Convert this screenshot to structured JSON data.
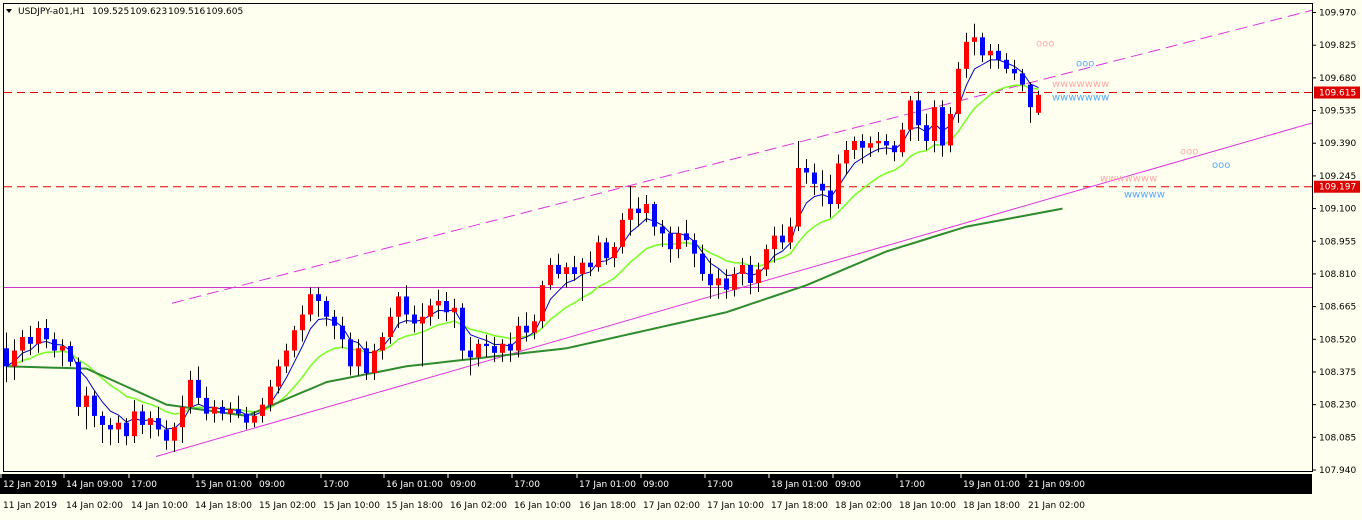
{
  "header": {
    "symbol": "USDJPY-a01,H1",
    "open": "109.525",
    "high": "109.623",
    "low": "109.516",
    "close": "109.605"
  },
  "colors": {
    "background": "#fffff0",
    "bull_candle": "#ff0000",
    "bear_candle": "#0000ff",
    "ma_fast": "#0000c8",
    "ma_mid": "#7cff2a",
    "ma_slow": "#2e8b2e",
    "channel": "#dd33dd",
    "hline_red": "#dd0000",
    "hline_magenta": "#cc33cc",
    "x_axis_bg": "#000000",
    "marker_pink": "#ffaaaa",
    "marker_blue": "#55aaff"
  },
  "chart_data": {
    "type": "candlestick",
    "instrument": "USDJPY",
    "timeframe": "H1",
    "ylim": [
      107.94,
      109.99
    ],
    "y_ticks": [
      "109.970",
      "109.825",
      "109.680",
      "109.535",
      "109.390",
      "109.245",
      "109.100",
      "108.955",
      "108.810",
      "108.665",
      "108.520",
      "108.375",
      "108.230",
      "108.085",
      "107.940"
    ],
    "x_ticks_row1": [
      "12 Jan 2019",
      "14 Jan 09:00",
      "17:00",
      "15 Jan 01:00",
      "09:00",
      "17:00",
      "16 Jan 01:00",
      "09:00",
      "17:00",
      "17 Jan 01:00",
      "09:00",
      "17:00",
      "18 Jan 01:00",
      "09:00",
      "17:00",
      "19 Jan 01:00",
      "21 Jan 09:00"
    ],
    "x_ticks_row2": [
      "11 Jan 2019",
      "14 Jan 02:00",
      "14 Jan 10:00",
      "14 Jan 18:00",
      "15 Jan 02:00",
      "15 Jan 10:00",
      "15 Jan 18:00",
      "16 Jan 02:00",
      "16 Jan 10:00",
      "16 Jan 18:00",
      "17 Jan 02:00",
      "17 Jan 10:00",
      "17 Jan 18:00",
      "18 Jan 02:00",
      "18 Jan 10:00",
      "18 Jan 18:00",
      "21 Jan 02:00"
    ],
    "price_labels": [
      {
        "value": 109.615,
        "text": "109.615"
      },
      {
        "value": 109.197,
        "text": "109.197"
      }
    ],
    "horizontal_lines": [
      {
        "value": 109.615,
        "style": "dashed",
        "color": "red"
      },
      {
        "value": 109.197,
        "style": "dashed",
        "color": "red"
      },
      {
        "value": 108.75,
        "style": "solid",
        "color": "magenta"
      }
    ],
    "channel_lines": [
      {
        "from": [
          0,
          108.68
        ],
        "to": [
          174,
          109.98
        ],
        "style": "dashed"
      },
      {
        "from": [
          0,
          108.0
        ],
        "to": [
          207,
          109.48
        ],
        "style": "solid"
      }
    ],
    "candles": [
      [
        108.48,
        108.55,
        108.33,
        108.4
      ],
      [
        108.4,
        108.52,
        108.34,
        108.47
      ],
      [
        108.47,
        108.56,
        108.42,
        108.53
      ],
      [
        108.53,
        108.58,
        108.45,
        108.5
      ],
      [
        108.5,
        108.6,
        108.46,
        108.57
      ],
      [
        108.57,
        108.61,
        108.48,
        108.52
      ],
      [
        108.52,
        108.55,
        108.44,
        108.47
      ],
      [
        108.47,
        108.52,
        108.4,
        108.49
      ],
      [
        108.49,
        108.51,
        108.4,
        108.42
      ],
      [
        108.42,
        108.44,
        108.18,
        108.22
      ],
      [
        108.22,
        108.31,
        108.12,
        108.27
      ],
      [
        108.27,
        108.29,
        108.13,
        108.18
      ],
      [
        108.18,
        108.2,
        108.06,
        108.14
      ],
      [
        108.14,
        108.17,
        108.05,
        108.12
      ],
      [
        108.12,
        108.18,
        108.06,
        108.15
      ],
      [
        108.15,
        108.17,
        108.05,
        108.09
      ],
      [
        108.09,
        108.25,
        108.06,
        108.2
      ],
      [
        108.2,
        108.23,
        108.1,
        108.14
      ],
      [
        108.14,
        108.2,
        108.08,
        108.17
      ],
      [
        108.17,
        108.22,
        108.09,
        108.12
      ],
      [
        108.12,
        108.16,
        108.03,
        108.07
      ],
      [
        108.07,
        108.15,
        108.02,
        108.13
      ],
      [
        108.13,
        108.27,
        108.06,
        108.22
      ],
      [
        108.22,
        108.38,
        108.19,
        108.34
      ],
      [
        108.34,
        108.4,
        108.23,
        108.26
      ],
      [
        108.26,
        108.31,
        108.16,
        108.19
      ],
      [
        108.19,
        108.25,
        108.15,
        108.22
      ],
      [
        108.22,
        108.25,
        108.16,
        108.19
      ],
      [
        108.19,
        108.24,
        108.15,
        108.21
      ],
      [
        108.21,
        108.27,
        108.17,
        108.19
      ],
      [
        108.19,
        108.22,
        108.12,
        108.15
      ],
      [
        108.15,
        108.2,
        108.13,
        108.18
      ],
      [
        108.18,
        108.26,
        108.15,
        108.23
      ],
      [
        108.23,
        108.34,
        108.2,
        108.31
      ],
      [
        108.31,
        108.43,
        108.28,
        108.4
      ],
      [
        108.4,
        108.5,
        108.37,
        108.47
      ],
      [
        108.47,
        108.58,
        108.44,
        108.56
      ],
      [
        108.56,
        108.67,
        108.51,
        108.63
      ],
      [
        108.63,
        108.75,
        108.6,
        108.72
      ],
      [
        108.72,
        108.75,
        108.62,
        108.69
      ],
      [
        108.69,
        108.71,
        108.58,
        108.62
      ],
      [
        108.62,
        108.65,
        108.52,
        108.58
      ],
      [
        108.58,
        108.62,
        108.48,
        108.52
      ],
      [
        108.52,
        108.55,
        108.36,
        108.4
      ],
      [
        108.4,
        108.52,
        108.36,
        108.48
      ],
      [
        108.48,
        108.51,
        108.34,
        108.37
      ],
      [
        108.37,
        108.5,
        108.34,
        108.47
      ],
      [
        108.47,
        108.55,
        108.43,
        108.53
      ],
      [
        108.53,
        108.66,
        108.5,
        108.62
      ],
      [
        108.62,
        108.73,
        108.57,
        108.71
      ],
      [
        108.71,
        108.76,
        108.59,
        108.63
      ],
      [
        108.63,
        108.67,
        108.55,
        108.59
      ],
      [
        108.59,
        108.68,
        108.4,
        108.62
      ],
      [
        108.62,
        108.7,
        108.58,
        108.67
      ],
      [
        108.67,
        108.74,
        108.61,
        108.69
      ],
      [
        108.69,
        108.73,
        108.6,
        108.64
      ],
      [
        108.64,
        108.7,
        108.57,
        108.66
      ],
      [
        108.66,
        108.68,
        108.43,
        108.47
      ],
      [
        108.47,
        108.53,
        108.36,
        108.44
      ],
      [
        108.44,
        108.52,
        108.4,
        108.5
      ],
      [
        108.5,
        108.54,
        108.44,
        108.49
      ],
      [
        108.49,
        108.53,
        108.42,
        108.46
      ],
      [
        108.46,
        108.52,
        108.42,
        108.5
      ],
      [
        108.5,
        108.55,
        108.42,
        108.47
      ],
      [
        108.47,
        108.62,
        108.44,
        108.58
      ],
      [
        108.58,
        108.64,
        108.51,
        108.55
      ],
      [
        108.55,
        108.63,
        108.52,
        108.6
      ],
      [
        108.6,
        108.78,
        108.57,
        108.76
      ],
      [
        108.76,
        108.88,
        108.74,
        108.85
      ],
      [
        108.85,
        108.9,
        108.79,
        108.81
      ],
      [
        108.81,
        108.86,
        108.75,
        108.84
      ],
      [
        108.84,
        108.89,
        108.78,
        108.81
      ],
      [
        108.81,
        108.88,
        108.69,
        108.86
      ],
      [
        108.86,
        108.91,
        108.8,
        108.84
      ],
      [
        108.84,
        108.98,
        108.82,
        108.95
      ],
      [
        108.95,
        108.97,
        108.85,
        108.88
      ],
      [
        108.88,
        108.95,
        108.84,
        108.93
      ],
      [
        108.93,
        109.08,
        108.9,
        109.05
      ],
      [
        109.05,
        109.2,
        108.98,
        109.1
      ],
      [
        109.1,
        109.15,
        109.02,
        109.08
      ],
      [
        109.08,
        109.16,
        109.04,
        109.12
      ],
      [
        109.12,
        109.13,
        108.98,
        109.02
      ],
      [
        109.02,
        109.05,
        108.93,
        108.99
      ],
      [
        108.99,
        109.02,
        108.86,
        108.92
      ],
      [
        108.92,
        109.02,
        108.88,
        108.99
      ],
      [
        108.99,
        109.05,
        108.93,
        108.96
      ],
      [
        108.96,
        108.99,
        108.84,
        108.9
      ],
      [
        108.9,
        108.94,
        108.78,
        108.81
      ],
      [
        108.81,
        108.88,
        108.7,
        108.76
      ],
      [
        108.76,
        108.83,
        108.7,
        108.79
      ],
      [
        108.79,
        108.83,
        108.7,
        108.74
      ],
      [
        108.74,
        108.84,
        108.71,
        108.81
      ],
      [
        108.81,
        108.88,
        108.76,
        108.85
      ],
      [
        108.85,
        108.89,
        108.72,
        108.77
      ],
      [
        108.77,
        108.86,
        108.73,
        108.83
      ],
      [
        108.83,
        108.94,
        108.8,
        108.92
      ],
      [
        108.92,
        109.02,
        108.86,
        108.98
      ],
      [
        108.98,
        109.03,
        108.92,
        108.95
      ],
      [
        108.95,
        109.06,
        108.92,
        109.02
      ],
      [
        109.02,
        109.4,
        109.0,
        109.28
      ],
      [
        109.28,
        109.32,
        109.21,
        109.26
      ],
      [
        109.26,
        109.3,
        109.16,
        109.21
      ],
      [
        109.21,
        109.27,
        109.11,
        109.18
      ],
      [
        109.18,
        109.25,
        109.06,
        109.12
      ],
      [
        109.12,
        109.34,
        109.1,
        109.3
      ],
      [
        109.3,
        109.4,
        109.25,
        109.36
      ],
      [
        109.36,
        109.42,
        109.32,
        109.4
      ],
      [
        109.4,
        109.43,
        109.3,
        109.37
      ],
      [
        109.37,
        109.42,
        109.33,
        109.39
      ],
      [
        109.39,
        109.44,
        109.35,
        109.4
      ],
      [
        109.4,
        109.43,
        109.34,
        109.38
      ],
      [
        109.38,
        109.4,
        109.31,
        109.35
      ],
      [
        109.35,
        109.48,
        109.33,
        109.45
      ],
      [
        109.45,
        109.6,
        109.4,
        109.58
      ],
      [
        109.58,
        109.62,
        109.4,
        109.47
      ],
      [
        109.47,
        109.52,
        109.36,
        109.4
      ],
      [
        109.4,
        109.58,
        109.35,
        109.55
      ],
      [
        109.55,
        109.58,
        109.33,
        109.38
      ],
      [
        109.38,
        109.55,
        109.35,
        109.52
      ],
      [
        109.52,
        109.75,
        109.48,
        109.72
      ],
      [
        109.72,
        109.88,
        109.68,
        109.84
      ],
      [
        109.84,
        109.92,
        109.78,
        109.86
      ],
      [
        109.86,
        109.88,
        109.75,
        109.78
      ],
      [
        109.78,
        109.83,
        109.72,
        109.8
      ],
      [
        109.8,
        109.83,
        109.72,
        109.76
      ],
      [
        109.76,
        109.79,
        109.7,
        109.72
      ],
      [
        109.72,
        109.76,
        109.67,
        109.7
      ],
      [
        109.7,
        109.72,
        109.62,
        109.65
      ],
      [
        109.65,
        109.66,
        109.48,
        109.55
      ],
      [
        109.525,
        109.623,
        109.516,
        109.605
      ]
    ],
    "moving_averages": [
      {
        "name": "MA fast",
        "color": "blue"
      },
      {
        "name": "MA mid",
        "color": "light green"
      },
      {
        "name": "MA slow",
        "color": "dark green"
      }
    ],
    "ma_slow_points": [
      [
        0,
        108.4
      ],
      [
        10,
        108.39
      ],
      [
        20,
        108.23
      ],
      [
        30,
        108.18
      ],
      [
        40,
        108.33
      ],
      [
        50,
        108.4
      ],
      [
        60,
        108.44
      ],
      [
        70,
        108.48
      ],
      [
        80,
        108.56
      ],
      [
        90,
        108.64
      ],
      [
        100,
        108.76
      ],
      [
        110,
        108.91
      ],
      [
        120,
        109.02
      ],
      [
        132,
        109.1
      ]
    ],
    "markers": [
      {
        "text": "ooo",
        "color": "pink",
        "x": 129,
        "y": 109.82
      },
      {
        "text": "ooo",
        "color": "blue",
        "x": 134,
        "y": 109.73
      },
      {
        "text": "wwwwwww",
        "color": "pink",
        "x": 131,
        "y": 109.64
      },
      {
        "text": "wwwwwww",
        "color": "blue",
        "x": 131,
        "y": 109.58
      },
      {
        "text": "ooo",
        "color": "pink",
        "x": 147,
        "y": 109.34
      },
      {
        "text": "ooo",
        "color": "blue",
        "x": 151,
        "y": 109.28
      },
      {
        "text": "wwwwwww",
        "color": "pink",
        "x": 137,
        "y": 109.22
      },
      {
        "text": "wwwww",
        "color": "blue",
        "x": 140,
        "y": 109.15
      }
    ]
  }
}
